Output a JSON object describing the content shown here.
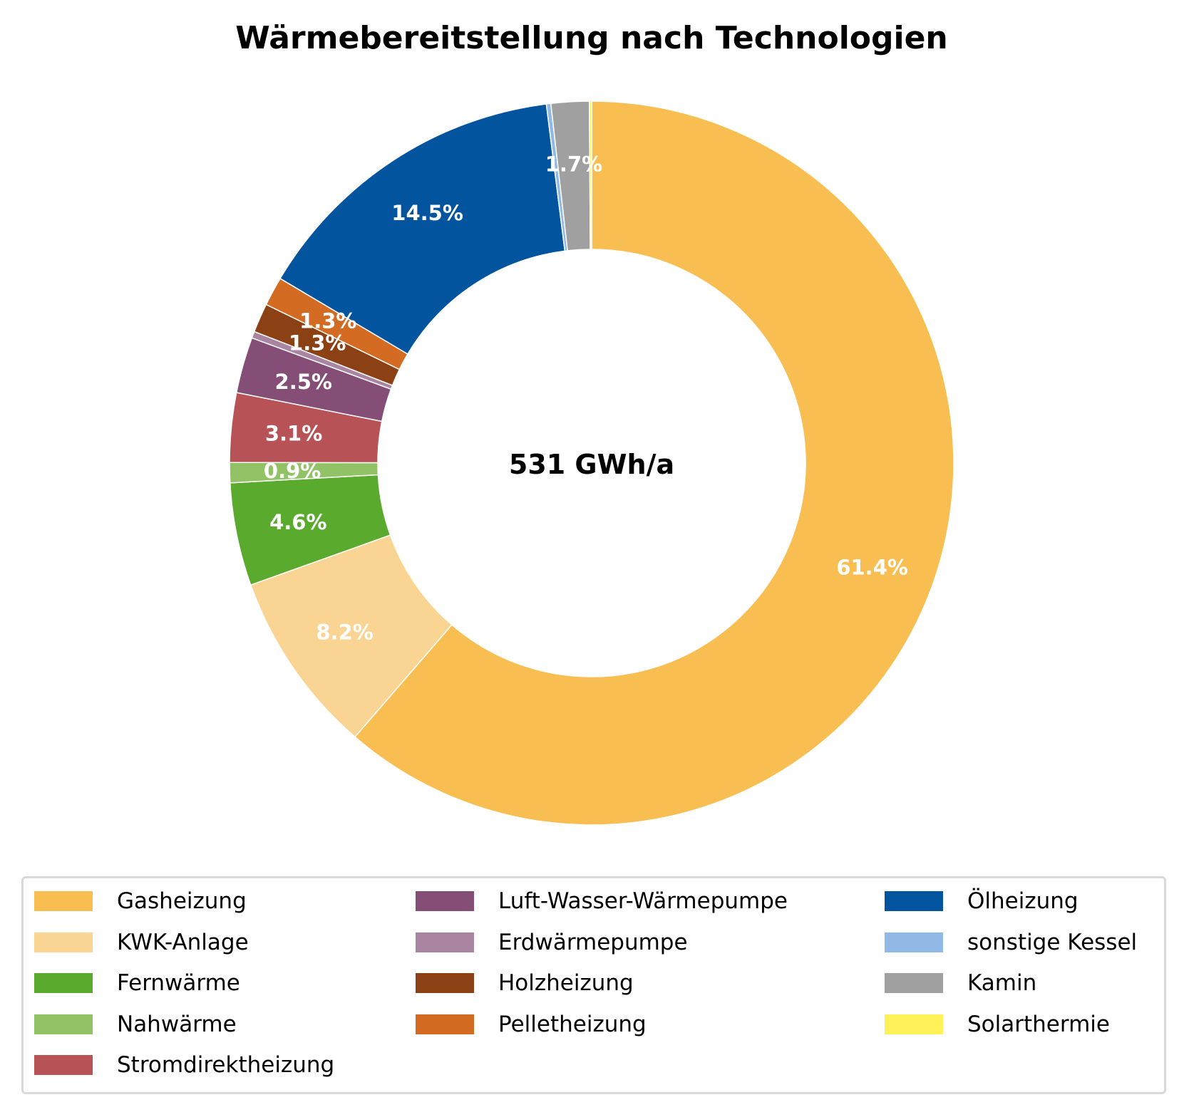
{
  "chart_data": {
    "type": "pie",
    "title": "Wärmebereitstellung nach Technologien",
    "center_label": "531 GWh/a",
    "legend_position": "bottom",
    "start_angle": "12 o'clock",
    "direction": "clockwise",
    "series": [
      {
        "name": "Gasheizung",
        "value": 61.4,
        "label": "61.4%",
        "color": "#F9BE52"
      },
      {
        "name": "KWK-Anlage",
        "value": 8.2,
        "label": "8.2%",
        "color": "#FAD493"
      },
      {
        "name": "Fernwärme",
        "value": 4.6,
        "label": "4.6%",
        "color": "#5AAA2E"
      },
      {
        "name": "Nahwärme",
        "value": 0.9,
        "label": "0.9%",
        "color": "#92C266"
      },
      {
        "name": "Stromdirektheizung",
        "value": 3.1,
        "label": "3.1%",
        "color": "#B75256"
      },
      {
        "name": "Luft-Wasser-Wärmepumpe",
        "value": 2.5,
        "label": "2.5%",
        "color": "#844E77"
      },
      {
        "name": "Erdwärmepumpe",
        "value": 0.3,
        "label": "",
        "color": "#A985A1"
      },
      {
        "name": "Holzheizung",
        "value": 1.3,
        "label": "1.3%",
        "color": "#8C4115"
      },
      {
        "name": "Pelletheizung",
        "value": 1.3,
        "label": "1.3%",
        "color": "#D36B22"
      },
      {
        "name": "Ölheizung",
        "value": 14.5,
        "label": "14.5%",
        "color": "#02549F"
      },
      {
        "name": "sonstige Kessel",
        "value": 0.2,
        "label": "",
        "color": "#91B9E5"
      },
      {
        "name": "Kamin",
        "value": 1.7,
        "label": "1.7%",
        "color": "#A0A0A0"
      },
      {
        "name": "Solarthermie",
        "value": 0.1,
        "label": "",
        "color": "#FFF157"
      }
    ]
  }
}
